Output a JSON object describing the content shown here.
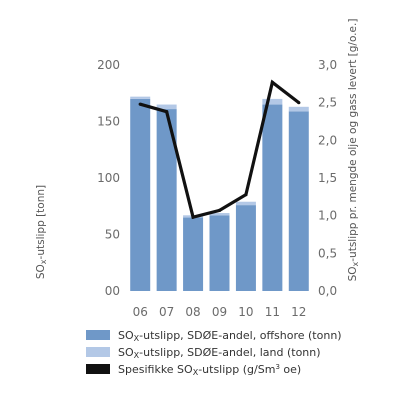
{
  "chart_data": {
    "type": "bar",
    "categories": [
      "06",
      "07",
      "08",
      "09",
      "10",
      "11",
      "12"
    ],
    "series": [
      {
        "name": "SOx-utslipp, SDØE-andel, offshore (tonn)",
        "kind": "bar",
        "axis": "left",
        "color": "#6f98c8",
        "values": [
          170,
          161,
          65,
          67,
          76,
          165,
          159
        ]
      },
      {
        "name": "SOx-utslipp, SDØE-andel, land (tonn)",
        "kind": "bar",
        "axis": "left",
        "color": "#b3c8e6",
        "values": [
          2,
          4,
          2,
          2,
          3,
          5,
          4
        ]
      },
      {
        "name": "Spesifikke SOx-utslipp (g/Sm³ oe)",
        "kind": "line",
        "axis": "right",
        "color": "#111111",
        "values": [
          2.48,
          2.38,
          0.98,
          1.07,
          1.28,
          2.77,
          2.5
        ]
      }
    ],
    "stacked": true,
    "ylabel": "SOx-utslipp (tonn)",
    "y2label": "SOx-utslipp pr. mengde olje og gass levert (g/o.e.)",
    "ylim": [
      0,
      200
    ],
    "y2lim": [
      0,
      3.0
    ],
    "yticks": [
      "00",
      "50",
      "100",
      "150",
      "200"
    ],
    "y2ticks": [
      "0,0",
      "0,5",
      "1,0",
      "1,5",
      "2,0",
      "2,5",
      "3,0"
    ],
    "grid": false,
    "legend_position": "bottom"
  }
}
